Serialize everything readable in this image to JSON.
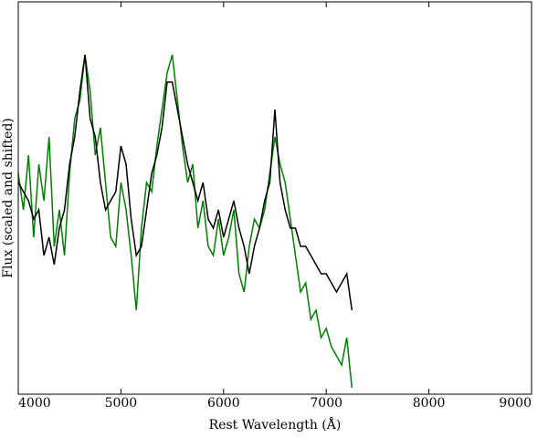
{
  "chart_data": {
    "type": "line",
    "xlabel": "Rest Wavelength (Å)",
    "ylabel": "Flux (scaled and shifted)",
    "x": [
      4000,
      4050,
      4100,
      4150,
      4200,
      4250,
      4300,
      4350,
      4400,
      4450,
      4500,
      4550,
      4600,
      4650,
      4700,
      4750,
      4800,
      4850,
      4900,
      4950,
      5000,
      5050,
      5100,
      5150,
      5200,
      5250,
      5300,
      5350,
      5400,
      5450,
      5500,
      5550,
      5600,
      5650,
      5700,
      5750,
      5800,
      5850,
      5900,
      5950,
      6000,
      6050,
      6100,
      6150,
      6200,
      6250,
      6300,
      6350,
      6400,
      6450,
      6500,
      6550,
      6600,
      6650,
      6700,
      6750,
      6800,
      6850,
      6900,
      6950,
      7000,
      7050,
      7100,
      7150,
      7200,
      7250
    ],
    "series": [
      {
        "color": "#008000",
        "values": [
          242,
          202,
          262,
          172,
          252,
          212,
          282,
          162,
          202,
          152,
          242,
          302,
          322,
          372,
          332,
          262,
          292,
          232,
          172,
          162,
          232,
          202,
          152,
          92,
          182,
          232,
          222,
          272,
          312,
          352,
          372,
          322,
          272,
          232,
          252,
          182,
          212,
          162,
          152,
          192,
          152,
          172,
          202,
          132,
          112,
          162,
          192,
          182,
          202,
          242,
          282,
          252,
          232,
          192,
          152,
          112,
          122,
          82,
          92,
          62,
          72,
          52,
          42,
          32,
          62,
          7
        ]
      },
      {
        "color": "#000000",
        "values": [
          232,
          222,
          212,
          192,
          202,
          152,
          172,
          142,
          182,
          202,
          252,
          282,
          332,
          372,
          302,
          282,
          232,
          202,
          212,
          222,
          272,
          252,
          192,
          152,
          162,
          202,
          242,
          262,
          292,
          342,
          342,
          312,
          282,
          252,
          232,
          212,
          232,
          192,
          182,
          202,
          172,
          192,
          212,
          182,
          162,
          132,
          162,
          182,
          212,
          232,
          312,
          232,
          202,
          182,
          182,
          162,
          162,
          152,
          142,
          132,
          132,
          122,
          112,
          122,
          132,
          92
        ]
      }
    ],
    "xlim": [
      4000,
      9000
    ],
    "xticks": [
      4000,
      5000,
      6000,
      7000,
      8000,
      9000
    ],
    "ylim": [
      0,
      430
    ]
  }
}
